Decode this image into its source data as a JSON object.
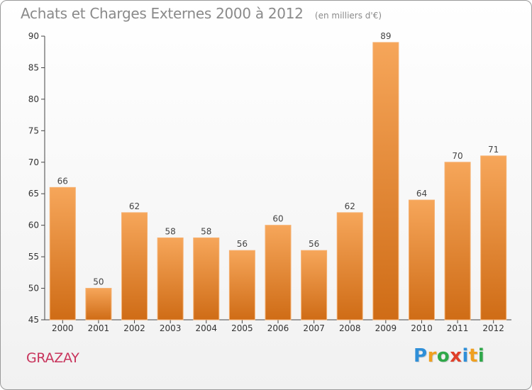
{
  "chart_data": {
    "type": "bar",
    "title": "Achats et Charges Externes 2000 à 2012",
    "subtitle": "(en milliers d'€)",
    "categories": [
      "2000",
      "2001",
      "2002",
      "2003",
      "2004",
      "2005",
      "2006",
      "2007",
      "2008",
      "2009",
      "2010",
      "2011",
      "2012"
    ],
    "values": [
      66,
      50,
      62,
      58,
      58,
      56,
      60,
      56,
      62,
      89,
      64,
      70,
      71
    ],
    "ylim": [
      45,
      90
    ],
    "yticks": [
      45,
      50,
      55,
      60,
      65,
      70,
      75,
      80,
      85,
      90
    ],
    "grid": false,
    "bar_color_top": "#f6a65a",
    "bar_color_bottom": "#cf6c16"
  },
  "footer": {
    "commune": "GRAZAY",
    "brand_letters": [
      "P",
      "r",
      "o",
      "x",
      "i",
      "t",
      "i"
    ],
    "brand_colors": [
      "#2f8fd8",
      "#f0a020",
      "#2fa84a",
      "#e0402a",
      "#2f8fd8",
      "#f0a020",
      "#2fa84a"
    ]
  }
}
